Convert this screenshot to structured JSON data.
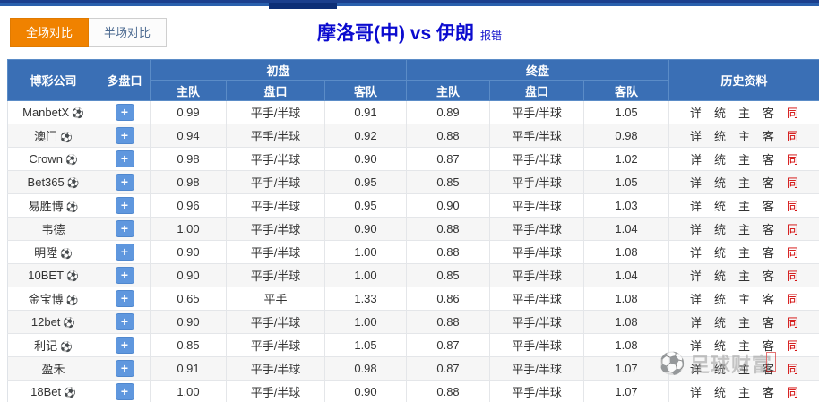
{
  "top_tabs": [
    {
      "label": "全场对比",
      "active": true
    },
    {
      "label": "半场对比",
      "active": false
    }
  ],
  "title": {
    "text": "摩洛哥(中) vs 伊朗",
    "report_error": "报错"
  },
  "table": {
    "headers": {
      "company": "博彩公司",
      "multi": "多盘口",
      "initial": "初盘",
      "final": "终盘",
      "history": "历史资料"
    },
    "subheaders": [
      "主队",
      "盘口",
      "客队",
      "主队",
      "盘口",
      "客队"
    ],
    "plus_label": "+",
    "football_glyph": "⚽",
    "history_links": [
      "详",
      "统",
      "主",
      "客",
      "同"
    ],
    "rows": [
      {
        "company": "ManbetX",
        "has_ball": true,
        "initial": {
          "home": "0.99",
          "handicap": "平手/半球",
          "away": "0.91"
        },
        "final": {
          "home": "0.89",
          "handicap": "平手/半球",
          "away": "1.05"
        }
      },
      {
        "company": "澳门",
        "has_ball": true,
        "initial": {
          "home": "0.94",
          "handicap": "平手/半球",
          "away": "0.92"
        },
        "final": {
          "home": "0.88",
          "handicap": "平手/半球",
          "away": "0.98"
        }
      },
      {
        "company": "Crown",
        "has_ball": true,
        "initial": {
          "home": "0.98",
          "handicap": "平手/半球",
          "away": "0.90"
        },
        "final": {
          "home": "0.87",
          "handicap": "平手/半球",
          "away": "1.02"
        }
      },
      {
        "company": "Bet365",
        "has_ball": true,
        "initial": {
          "home": "0.98",
          "handicap": "平手/半球",
          "away": "0.95"
        },
        "final": {
          "home": "0.85",
          "handicap": "平手/半球",
          "away": "1.05"
        }
      },
      {
        "company": "易胜博",
        "has_ball": true,
        "initial": {
          "home": "0.96",
          "handicap": "平手/半球",
          "away": "0.95"
        },
        "final": {
          "home": "0.90",
          "handicap": "平手/半球",
          "away": "1.03"
        }
      },
      {
        "company": "韦德",
        "has_ball": false,
        "initial": {
          "home": "1.00",
          "handicap": "平手/半球",
          "away": "0.90"
        },
        "final": {
          "home": "0.88",
          "handicap": "平手/半球",
          "away": "1.04"
        }
      },
      {
        "company": "明陞",
        "has_ball": true,
        "initial": {
          "home": "0.90",
          "handicap": "平手/半球",
          "away": "1.00"
        },
        "final": {
          "home": "0.88",
          "handicap": "平手/半球",
          "away": "1.08"
        }
      },
      {
        "company": "10BET",
        "has_ball": true,
        "initial": {
          "home": "0.90",
          "handicap": "平手/半球",
          "away": "1.00"
        },
        "final": {
          "home": "0.85",
          "handicap": "平手/半球",
          "away": "1.04"
        }
      },
      {
        "company": "金宝博",
        "has_ball": true,
        "initial": {
          "home": "0.65",
          "handicap": "平手",
          "away": "1.33"
        },
        "final": {
          "home": "0.86",
          "handicap": "平手/半球",
          "away": "1.08"
        }
      },
      {
        "company": "12bet",
        "has_ball": true,
        "initial": {
          "home": "0.90",
          "handicap": "平手/半球",
          "away": "1.00"
        },
        "final": {
          "home": "0.88",
          "handicap": "平手/半球",
          "away": "1.08"
        }
      },
      {
        "company": "利记",
        "has_ball": true,
        "initial": {
          "home": "0.85",
          "handicap": "平手/半球",
          "away": "1.05"
        },
        "final": {
          "home": "0.87",
          "handicap": "平手/半球",
          "away": "1.08"
        }
      },
      {
        "company": "盈禾",
        "has_ball": false,
        "initial": {
          "home": "0.91",
          "handicap": "平手/半球",
          "away": "0.98"
        },
        "final": {
          "home": "0.87",
          "handicap": "平手/半球",
          "away": "1.07"
        }
      },
      {
        "company": "18Bet",
        "has_ball": true,
        "initial": {
          "home": "1.00",
          "handicap": "平手/半球",
          "away": "0.90"
        },
        "final": {
          "home": "0.88",
          "handicap": "平手/半球",
          "away": "1.07"
        }
      }
    ]
  },
  "watermark": {
    "text": "足球财富"
  },
  "colors": {
    "header_blue": "#3a6fb5",
    "active_tab_orange": "#f08200",
    "title_blue": "#0b0bcf",
    "link_red": "#d10000",
    "plus_button_blue": "#5f97de"
  }
}
